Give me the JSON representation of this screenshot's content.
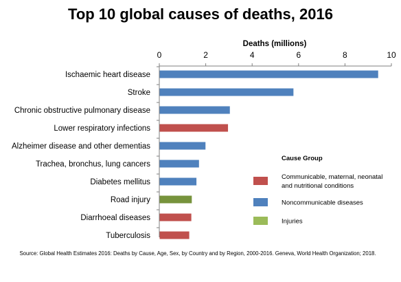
{
  "chart_data": {
    "type": "bar",
    "orientation": "horizontal",
    "title": "Top 10 global causes of deaths, 2016",
    "xlabel": "Deaths (millions)",
    "xlim": [
      0,
      10
    ],
    "xticks": [
      0,
      2,
      4,
      6,
      8,
      10
    ],
    "x_axis_position": "top",
    "grid": false,
    "categories": [
      "Ischaemic heart disease",
      "Stroke",
      "Chronic obstructive pulmonary disease",
      "Lower respiratory infections",
      "Alzheimer disease and other dementias",
      "Trachea, bronchus, lung cancers",
      "Diabetes mellitus",
      "Road injury",
      "Diarrhoeal diseases",
      "Tuberculosis"
    ],
    "values": [
      9.43,
      5.78,
      3.04,
      2.96,
      1.99,
      1.71,
      1.6,
      1.4,
      1.38,
      1.29
    ],
    "groups": [
      "Noncommunicable diseases",
      "Noncommunicable diseases",
      "Noncommunicable diseases",
      "Communicable, maternal, neonatal and nutritional conditions",
      "Noncommunicable diseases",
      "Noncommunicable diseases",
      "Noncommunicable diseases",
      "Injuries",
      "Communicable, maternal, neonatal and nutritional conditions",
      "Communicable, maternal, neonatal and nutritional conditions"
    ],
    "legend": {
      "title": "Cause Group",
      "placement": "right",
      "entries": [
        {
          "lines": [
            "Communicable, maternal, neonatal",
            "and nutritional conditions"
          ],
          "color": "#c0504d"
        },
        {
          "lines": [
            "Noncommunicable diseases"
          ],
          "color": "#4f81bd"
        },
        {
          "lines": [
            "Injuries"
          ],
          "color": "#9bbb59"
        }
      ]
    },
    "bar_colors": {
      "Communicable, maternal, neonatal and nutritional conditions": "#c0504d",
      "Noncommunicable diseases": "#4f81bd",
      "Injuries": "#77933c"
    },
    "source": "Source:  Global Health Estimates 2016: Deaths by Cause, Age, Sex, by Country and by Region, 2000-2016. Geneva, World Health Organization;  2018."
  }
}
